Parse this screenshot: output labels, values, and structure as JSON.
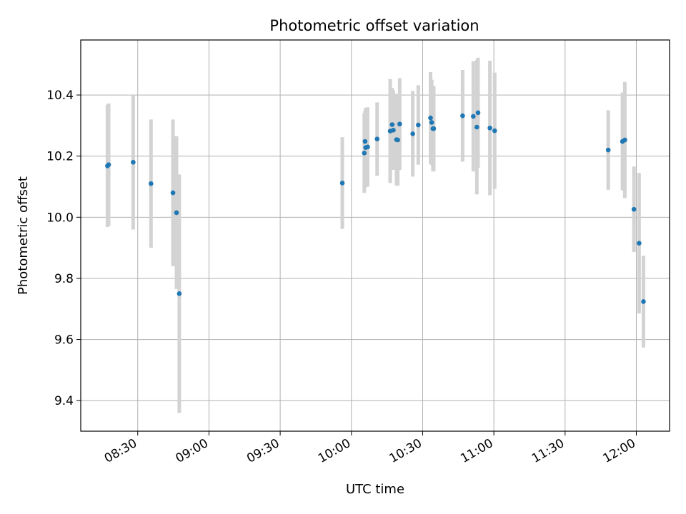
{
  "chart_data": {
    "type": "scatter",
    "title": "Photometric offset variation",
    "xlabel": "UTC time",
    "ylabel": "Photometric offset",
    "x_is_time": true,
    "xlim": [
      "08:06",
      "12:14"
    ],
    "ylim": [
      9.3,
      10.58
    ],
    "x_ticks": [
      "08:30",
      "09:00",
      "09:30",
      "10:00",
      "10:30",
      "11:00",
      "11:30",
      "12:00"
    ],
    "y_ticks": [
      9.4,
      9.6,
      9.8,
      10.0,
      10.2,
      10.4
    ],
    "y_tick_labels": [
      "9.4",
      "9.6",
      "9.8",
      "10.0",
      "10.2",
      "10.4"
    ],
    "grid": true,
    "colors": {
      "points": "#1f77b4",
      "error_bars": "#d3d3d3",
      "grid": "#b0b0b0"
    },
    "points": [
      {
        "t": "08:17:15",
        "y": 10.168,
        "err": 0.2
      },
      {
        "t": "08:17:45",
        "y": 10.172,
        "err": 0.2
      },
      {
        "t": "08:28:05",
        "y": 10.18,
        "err": 0.22
      },
      {
        "t": "08:35:35",
        "y": 10.11,
        "err": 0.21
      },
      {
        "t": "08:44:50",
        "y": 10.08,
        "err": 0.24
      },
      {
        "t": "08:46:20",
        "y": 10.015,
        "err": 0.25
      },
      {
        "t": "08:47:30",
        "y": 9.75,
        "err": 0.39
      },
      {
        "t": "09:56:10",
        "y": 10.112,
        "err": 0.15
      },
      {
        "t": "10:05:25",
        "y": 10.21,
        "err": 0.13
      },
      {
        "t": "10:05:45",
        "y": 10.248,
        "err": 0.1
      },
      {
        "t": "10:06:00",
        "y": 10.228,
        "err": 0.13
      },
      {
        "t": "10:06:50",
        "y": 10.23,
        "err": 0.13
      },
      {
        "t": "10:10:50",
        "y": 10.256,
        "err": 0.12
      },
      {
        "t": "10:16:20",
        "y": 10.282,
        "err": 0.17
      },
      {
        "t": "10:17:10",
        "y": 10.303,
        "err": 0.12
      },
      {
        "t": "10:17:40",
        "y": 10.285,
        "err": 0.13
      },
      {
        "t": "10:19:00",
        "y": 10.254,
        "err": 0.15
      },
      {
        "t": "10:19:30",
        "y": 10.253,
        "err": 0.15
      },
      {
        "t": "10:20:20",
        "y": 10.305,
        "err": 0.15
      },
      {
        "t": "10:25:50",
        "y": 10.273,
        "err": 0.14
      },
      {
        "t": "10:28:10",
        "y": 10.302,
        "err": 0.13
      },
      {
        "t": "10:33:20",
        "y": 10.325,
        "err": 0.15
      },
      {
        "t": "10:33:50",
        "y": 10.31,
        "err": 0.14
      },
      {
        "t": "10:34:20",
        "y": 10.29,
        "err": 0.14
      },
      {
        "t": "10:34:40",
        "y": 10.29,
        "err": 0.14
      },
      {
        "t": "10:46:50",
        "y": 10.332,
        "err": 0.15
      },
      {
        "t": "10:51:20",
        "y": 10.33,
        "err": 0.18
      },
      {
        "t": "10:52:50",
        "y": 10.295,
        "err": 0.22
      },
      {
        "t": "10:53:20",
        "y": 10.342,
        "err": 0.18
      },
      {
        "t": "10:58:20",
        "y": 10.292,
        "err": 0.22
      },
      {
        "t": "11:00:20",
        "y": 10.283,
        "err": 0.19
      },
      {
        "t": "11:48:10",
        "y": 10.22,
        "err": 0.13
      },
      {
        "t": "11:54:10",
        "y": 10.248,
        "err": 0.16
      },
      {
        "t": "11:55:10",
        "y": 10.253,
        "err": 0.19
      },
      {
        "t": "11:59:00",
        "y": 10.026,
        "err": 0.14
      },
      {
        "t": "12:01:10",
        "y": 9.915,
        "err": 0.23
      },
      {
        "t": "12:03:00",
        "y": 9.724,
        "err": 0.15
      }
    ]
  }
}
